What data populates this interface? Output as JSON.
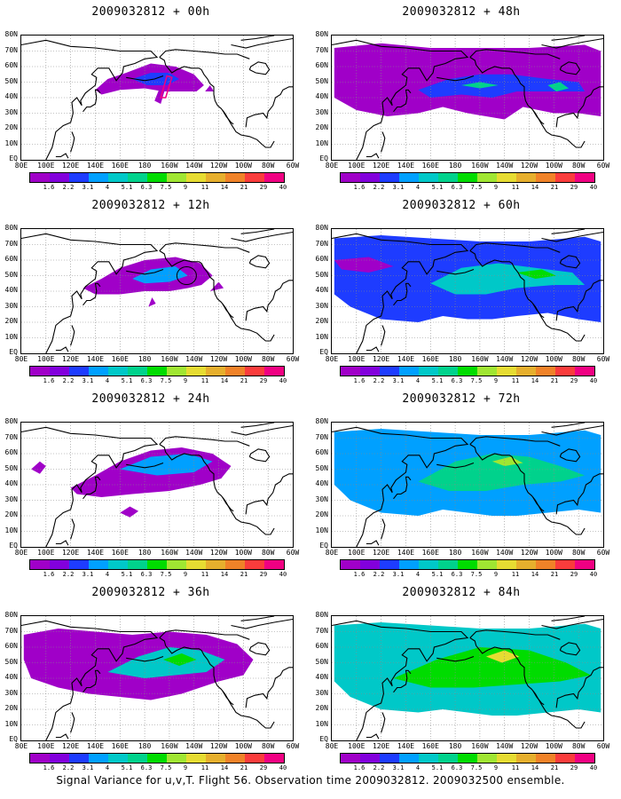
{
  "panels": [
    {
      "title": "2009032812 + 00h"
    },
    {
      "title": "2009032812 + 48h"
    },
    {
      "title": "2009032812 + 12h"
    },
    {
      "title": "2009032812 + 60h"
    },
    {
      "title": "2009032812 + 24h"
    },
    {
      "title": "2009032812 + 72h"
    },
    {
      "title": "2009032812 + 36h"
    },
    {
      "title": "2009032812 + 84h"
    }
  ],
  "lat_labels": [
    "80N",
    "70N",
    "60N",
    "50N",
    "40N",
    "30N",
    "20N",
    "10N",
    "EQ"
  ],
  "lon_labels": [
    "80E",
    "100E",
    "120E",
    "140E",
    "160E",
    "180",
    "160W",
    "140W",
    "120W",
    "100W",
    "80W",
    "60W"
  ],
  "colorbar": {
    "ticks": [
      "1.6",
      "2.2",
      "3.1",
      "4",
      "5.1",
      "6.3",
      "7.5",
      "9",
      "11",
      "14",
      "21",
      "29",
      "40"
    ],
    "colors": [
      "#a000c8",
      "#8200dc",
      "#1e3cff",
      "#00a0ff",
      "#00c8c8",
      "#00d28c",
      "#00dc00",
      "#a0e632",
      "#e6dc32",
      "#e6af2d",
      "#f08228",
      "#fa3c3c",
      "#f00082"
    ]
  },
  "footer": "Signal Variance for u,v,T. Flight 56. Observation time 2009032812. 2009032500 ensemble."
}
